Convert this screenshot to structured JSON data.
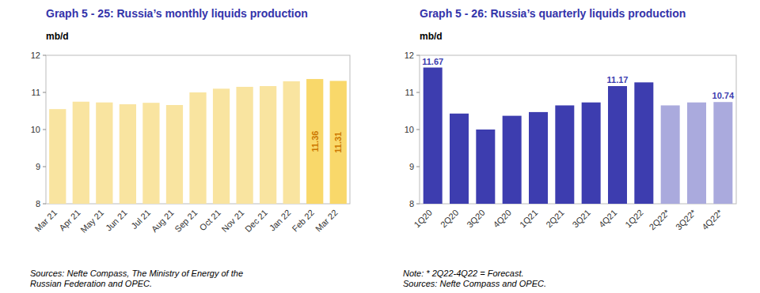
{
  "chart_data": [
    {
      "type": "bar",
      "title": "Graph 5 - 25: Russia’s monthly liquids production",
      "ylabel": "mb/d",
      "categories": [
        "Mar 21",
        "Apr 21",
        "May 21",
        "Jun 21",
        "Jul 21",
        "Aug 21",
        "Sep 21",
        "Oct 21",
        "Nov 21",
        "Dec 21",
        "Jan 22",
        "Feb 22",
        "Mar 22"
      ],
      "values": [
        10.55,
        10.75,
        10.73,
        10.68,
        10.72,
        10.66,
        11.0,
        11.1,
        11.15,
        11.17,
        11.3,
        11.36,
        11.31
      ],
      "value_labels": [
        null,
        null,
        null,
        null,
        null,
        null,
        null,
        null,
        null,
        null,
        null,
        "11.36",
        "11.31"
      ],
      "colors": [
        "#F9E4A0",
        "#F9E4A0",
        "#F9E4A0",
        "#F9E4A0",
        "#F9E4A0",
        "#F9E4A0",
        "#F9E4A0",
        "#F9E4A0",
        "#F9E4A0",
        "#F9E4A0",
        "#F9E4A0",
        "#F9D86A",
        "#F9D86A"
      ],
      "ylim": [
        8,
        12
      ],
      "yticks": [
        8,
        9,
        10,
        11,
        12
      ],
      "grid": false,
      "annotations": [
        "Sources: Nefte Compass, The Ministry of Energy of the\nRussian Federation and OPEC."
      ]
    },
    {
      "type": "bar",
      "title": "Graph 5 - 26: Russia’s quarterly liquids production",
      "ylabel": "mb/d",
      "categories": [
        "1Q20",
        "2Q20",
        "3Q20",
        "4Q20",
        "1Q21",
        "2Q21",
        "3Q21",
        "4Q21",
        "1Q22",
        "2Q22*",
        "3Q22*",
        "4Q22*"
      ],
      "values": [
        11.67,
        10.43,
        10.0,
        10.37,
        10.47,
        10.65,
        10.73,
        11.17,
        11.27,
        10.65,
        10.73,
        10.74
      ],
      "value_labels": [
        "11.67",
        null,
        null,
        null,
        null,
        null,
        null,
        "11.17",
        null,
        null,
        null,
        "10.74"
      ],
      "colors": [
        "#3D3DAF",
        "#3D3DAF",
        "#3D3DAF",
        "#3D3DAF",
        "#3D3DAF",
        "#3D3DAF",
        "#3D3DAF",
        "#3D3DAF",
        "#3D3DAF",
        "#AAAADD",
        "#AAAADD",
        "#AAAADD"
      ],
      "ylim": [
        8,
        12
      ],
      "yticks": [
        8,
        9,
        10,
        11,
        12
      ],
      "grid": false,
      "annotations": [
        "Note: * 2Q22-4Q22 = Forecast.\nSources: Nefte Compass and OPEC."
      ]
    }
  ]
}
